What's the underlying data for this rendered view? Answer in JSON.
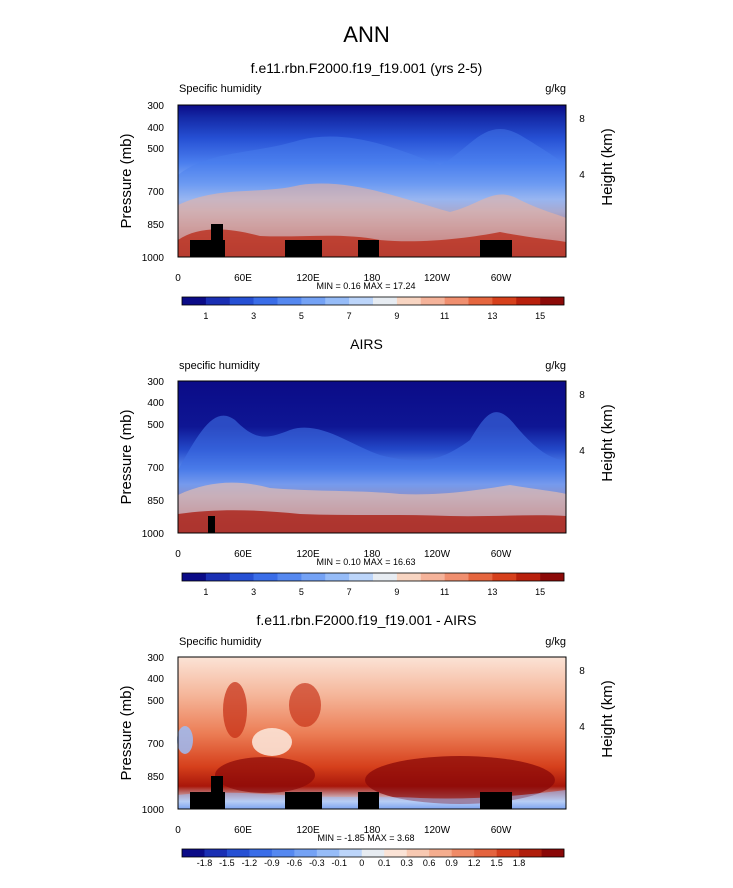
{
  "page_title": "ANN",
  "colors": {
    "ocean_deep": "#0a0a8c",
    "land_mask": "#000000"
  },
  "chart_data": [
    {
      "type": "heatmap",
      "title": "f.e11.rbn.F2000.f19_f19.001 (yrs 2-5)",
      "left_label": "Specific humidity",
      "units": "g/kg",
      "xlabel": "",
      "ylabel": "Pressure (mb)",
      "y2label": "Height (km)",
      "x_ticks": [
        "0",
        "60E",
        "120E",
        "180",
        "120W",
        "60W"
      ],
      "y_ticks": [
        "300",
        "400",
        "500",
        "700",
        "850",
        "1000"
      ],
      "y2_ticks": [
        "8",
        "4"
      ],
      "ylim": [
        1000,
        300
      ],
      "stats": "MIN =  0.16  MAX =  17.24",
      "colorbar_labels": [
        "1",
        "3",
        "5",
        "7",
        "9",
        "11",
        "13",
        "15"
      ],
      "colorbar_colors": [
        "#0b0b87",
        "#1a2fb3",
        "#2650d4",
        "#3a6de8",
        "#5588f0",
        "#74a2f5",
        "#96bcf8",
        "#bcd5fa",
        "#e7ecf2",
        "#f8d5c2",
        "#f5b39a",
        "#f08f6f",
        "#e5663f",
        "#d6401c",
        "#b8200c",
        "#8c0a08"
      ]
    },
    {
      "type": "heatmap",
      "title": "AIRS",
      "left_label": "specific humidity",
      "units": "g/kg",
      "xlabel": "",
      "ylabel": "Pressure (mb)",
      "y2label": "Height (km)",
      "x_ticks": [
        "0",
        "60E",
        "120E",
        "180",
        "120W",
        "60W"
      ],
      "y_ticks": [
        "300",
        "400",
        "500",
        "700",
        "850",
        "1000"
      ],
      "y2_ticks": [
        "8",
        "4"
      ],
      "ylim": [
        1000,
        300
      ],
      "stats": "MIN =  0.10  MAX =  16.63",
      "colorbar_labels": [
        "1",
        "3",
        "5",
        "7",
        "9",
        "11",
        "13",
        "15"
      ],
      "colorbar_colors": [
        "#0b0b87",
        "#1a2fb3",
        "#2650d4",
        "#3a6de8",
        "#5588f0",
        "#74a2f5",
        "#96bcf8",
        "#bcd5fa",
        "#e7ecf2",
        "#f8d5c2",
        "#f5b39a",
        "#f08f6f",
        "#e5663f",
        "#d6401c",
        "#b8200c",
        "#8c0a08"
      ]
    },
    {
      "type": "heatmap",
      "title": "f.e11.rbn.F2000.f19_f19.001 - AIRS",
      "left_label": "Specific humidity",
      "units": "g/kg",
      "xlabel": "",
      "ylabel": "Pressure (mb)",
      "y2label": "Height (km)",
      "x_ticks": [
        "0",
        "60E",
        "120E",
        "180",
        "120W",
        "60W"
      ],
      "y_ticks": [
        "300",
        "400",
        "500",
        "700",
        "850",
        "1000"
      ],
      "y2_ticks": [
        "8",
        "4"
      ],
      "ylim": [
        1000,
        300
      ],
      "stats": "MIN = -1.85  MAX =   3.68",
      "colorbar_labels": [
        "-1.8",
        "-1.5",
        "-1.2",
        "-0.9",
        "-0.6",
        "-0.3",
        "-0.1",
        "0",
        "0.1",
        "0.3",
        "0.6",
        "0.9",
        "1.2",
        "1.5",
        "1.8"
      ],
      "colorbar_colors": [
        "#0b0b87",
        "#1a2fb3",
        "#2650d4",
        "#3a6de8",
        "#5588f0",
        "#74a2f5",
        "#96bcf8",
        "#bcd5fa",
        "#e7ecf2",
        "#fbe3d6",
        "#f8c9b2",
        "#f5ad8e",
        "#ef8a66",
        "#e4633e",
        "#d23d1c",
        "#b01e0c",
        "#8a0808"
      ]
    }
  ]
}
